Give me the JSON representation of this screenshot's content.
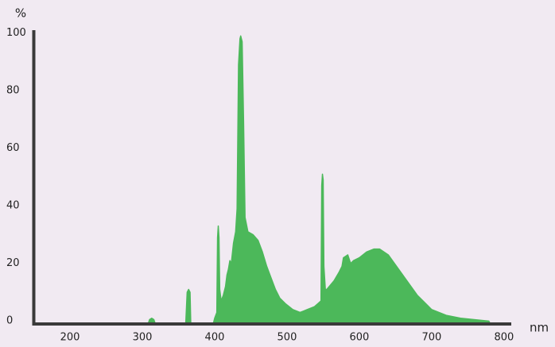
{
  "chart_data": {
    "type": "area",
    "y_unit": "%",
    "x_unit": "nm",
    "color": "#4cb85a",
    "x": [
      308,
      310,
      313,
      316,
      318,
      360,
      362,
      364,
      366,
      367,
      398,
      400,
      403,
      404,
      405,
      406,
      407,
      409,
      412,
      415,
      417,
      419,
      421,
      423,
      426,
      429,
      431,
      433,
      435,
      436,
      438,
      440,
      442,
      446,
      453,
      460,
      466,
      472,
      478,
      484,
      490,
      498,
      508,
      518,
      528,
      538,
      547,
      548,
      549,
      550,
      551,
      553,
      555,
      565,
      572,
      576,
      578,
      584,
      588,
      592,
      600,
      610,
      620,
      628,
      640,
      660,
      680,
      700,
      720,
      740,
      760,
      779,
      781
    ],
    "values": [
      0,
      1.5,
      2,
      1.5,
      0,
      0,
      11,
      12,
      11,
      0,
      0,
      2,
      4,
      30,
      34,
      30,
      12,
      8,
      10,
      13,
      17,
      19,
      22,
      21,
      28,
      32,
      40,
      90,
      99,
      100,
      98,
      70,
      37,
      32,
      31,
      29,
      25,
      20,
      16,
      12,
      9,
      7,
      5,
      4,
      5,
      6,
      8,
      48,
      52,
      50,
      20,
      12,
      12,
      15,
      18,
      20,
      23,
      24,
      21,
      22,
      23,
      25,
      26,
      26,
      24,
      17,
      10,
      5,
      3,
      2,
      1.5,
      1,
      0
    ],
    "xlim": [
      150,
      810
    ],
    "xticks": [
      200,
      300,
      400,
      500,
      600,
      700,
      800
    ],
    "ylim": [
      0,
      102
    ],
    "yticks": [
      0,
      20,
      40,
      60,
      80,
      100
    ]
  }
}
